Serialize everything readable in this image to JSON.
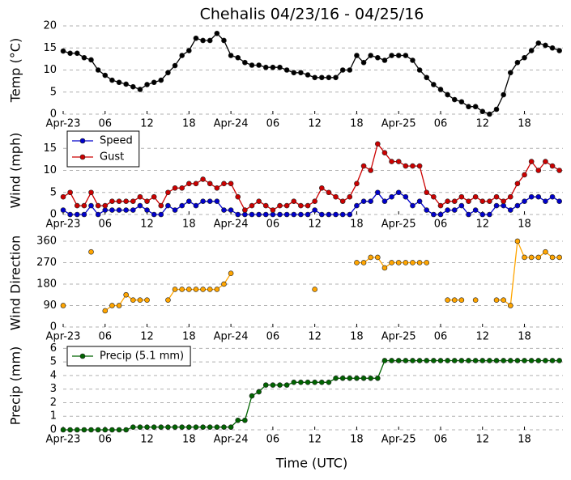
{
  "chart_data": [
    {
      "type": "line",
      "title": "Chehalis 04/23/16 - 04/25/16",
      "y_label": "Temp (°C)",
      "x": [
        0,
        1,
        2,
        3,
        4,
        5,
        6,
        7,
        8,
        9,
        10,
        11,
        12,
        13,
        14,
        15,
        16,
        17,
        18,
        19,
        20,
        21,
        22,
        23,
        24,
        25,
        26,
        27,
        28,
        29,
        30,
        31,
        32,
        33,
        34,
        35,
        36,
        37,
        38,
        39,
        40,
        41,
        42,
        43,
        44,
        45,
        46,
        47,
        48,
        49,
        50,
        51,
        52,
        53,
        54,
        55,
        56,
        57,
        58,
        59,
        60,
        61,
        62,
        63,
        64,
        65,
        66,
        67,
        68,
        69,
        70,
        71
      ],
      "xlim": [
        0,
        71.5
      ],
      "xticks": [
        {
          "value": 0,
          "label": "Apr-23"
        },
        {
          "value": 6,
          "label": "06"
        },
        12,
        18,
        {
          "value": 24,
          "label": "Apr-24"
        },
        {
          "value": 30,
          "label": "06"
        },
        {
          "value": 36,
          "label": "12"
        },
        {
          "value": 42,
          "label": "18"
        },
        {
          "value": 48,
          "label": "Apr-25"
        },
        {
          "value": 54,
          "label": "06"
        },
        {
          "value": 60,
          "label": "12"
        },
        {
          "value": 66,
          "label": "18"
        }
      ],
      "ylim": [
        0,
        20
      ],
      "yticks": [
        0,
        5,
        10,
        15,
        20
      ],
      "grid": true,
      "series": [
        {
          "color": "#000000",
          "values": [
            14.3,
            13.8,
            13.8,
            12.8,
            12.3,
            10,
            8.8,
            7.7,
            7.2,
            6.8,
            6.2,
            5.6,
            6.7,
            7.2,
            7.7,
            9.4,
            11,
            13.3,
            14.4,
            17.2,
            16.7,
            16.7,
            18.3,
            16.7,
            13.3,
            12.8,
            11.7,
            11.1,
            11.1,
            10.6,
            10.6,
            10.6,
            10,
            9.4,
            9.4,
            8.9,
            8.3,
            8.3,
            8.3,
            8.3,
            10,
            10,
            13.3,
            11.7,
            13.3,
            12.8,
            12.2,
            13.3,
            13.3,
            13.3,
            12.2,
            10,
            8.3,
            6.7,
            5.6,
            4.4,
            3.3,
            2.8,
            1.7,
            1.7,
            0.6,
            0,
            1.1,
            4.4,
            9.4,
            11.7,
            12.8,
            14.4,
            16.1,
            15.6,
            15,
            14.4
          ]
        }
      ]
    },
    {
      "type": "line",
      "y_label": "Wind (mph)",
      "x": [
        0,
        1,
        2,
        3,
        4,
        5,
        6,
        7,
        8,
        9,
        10,
        11,
        12,
        13,
        14,
        15,
        16,
        17,
        18,
        19,
        20,
        21,
        22,
        23,
        24,
        25,
        26,
        27,
        28,
        29,
        30,
        31,
        32,
        33,
        34,
        35,
        36,
        37,
        38,
        39,
        40,
        41,
        42,
        43,
        44,
        45,
        46,
        47,
        48,
        49,
        50,
        51,
        52,
        53,
        54,
        55,
        56,
        57,
        58,
        59,
        60,
        61,
        62,
        63,
        64,
        65,
        66,
        67,
        68,
        69,
        70,
        71
      ],
      "xlim": [
        0,
        71.5
      ],
      "xticks": [
        {
          "value": 0,
          "label": "Apr-23"
        },
        {
          "value": 6,
          "label": "06"
        },
        12,
        18,
        {
          "value": 24,
          "label": "Apr-24"
        },
        {
          "value": 30,
          "label": "06"
        },
        {
          "value": 36,
          "label": "12"
        },
        {
          "value": 42,
          "label": "18"
        },
        {
          "value": 48,
          "label": "Apr-25"
        },
        {
          "value": 54,
          "label": "06"
        },
        {
          "value": 60,
          "label": "12"
        },
        {
          "value": 66,
          "label": "18"
        }
      ],
      "ylim": [
        0,
        20
      ],
      "yticks": [
        0,
        5,
        10,
        15
      ],
      "grid": true,
      "legend": "upper left",
      "series": [
        {
          "name": "Speed",
          "color": "#0000cc",
          "values": [
            1,
            0,
            0,
            0,
            2,
            0,
            1,
            1,
            1,
            1,
            1,
            2,
            1,
            0,
            0,
            2,
            1,
            2,
            3,
            2,
            3,
            3,
            3,
            1,
            1,
            0,
            0,
            0,
            0,
            0,
            0,
            0,
            0,
            0,
            0,
            0,
            1,
            0,
            0,
            0,
            0,
            0,
            2,
            3,
            3,
            5,
            3,
            4,
            5,
            4,
            2,
            3,
            1,
            0,
            0,
            1,
            1,
            2,
            0,
            1,
            0,
            0,
            2,
            2,
            1,
            2,
            3,
            4,
            4,
            3,
            4,
            3
          ]
        },
        {
          "name": "Gust",
          "color": "#cc0000",
          "values": [
            4,
            5,
            2,
            2,
            5,
            2,
            2,
            3,
            3,
            3,
            3,
            4,
            3,
            4,
            2,
            5,
            6,
            6,
            7,
            7,
            8,
            7,
            6,
            7,
            7,
            4,
            1,
            2,
            3,
            2,
            1,
            2,
            2,
            3,
            2,
            2,
            3,
            6,
            5,
            4,
            3,
            4,
            7,
            11,
            10,
            16,
            14,
            12,
            12,
            11,
            11,
            11,
            5,
            4,
            2,
            3,
            3,
            4,
            3,
            4,
            3,
            3,
            4,
            3,
            4,
            7,
            9,
            12,
            10,
            12,
            11,
            10
          ]
        }
      ]
    },
    {
      "type": "line",
      "y_label": "Wind Direction",
      "x": [
        0,
        1,
        2,
        3,
        4,
        5,
        6,
        7,
        8,
        9,
        10,
        11,
        12,
        13,
        14,
        15,
        16,
        17,
        18,
        19,
        20,
        21,
        22,
        23,
        24,
        25,
        26,
        27,
        28,
        29,
        30,
        31,
        32,
        33,
        34,
        35,
        36,
        37,
        38,
        39,
        40,
        41,
        42,
        43,
        44,
        45,
        46,
        47,
        48,
        49,
        50,
        51,
        52,
        53,
        54,
        55,
        56,
        57,
        58,
        59,
        60,
        61,
        62,
        63,
        64,
        65,
        66,
        67,
        68,
        69,
        70,
        71
      ],
      "xlim": [
        0,
        71.5
      ],
      "xticks": [
        {
          "value": 0,
          "label": "Apr-23"
        },
        {
          "value": 6,
          "label": "06"
        },
        12,
        18,
        {
          "value": 24,
          "label": "Apr-24"
        },
        {
          "value": 30,
          "label": "06"
        },
        {
          "value": 36,
          "label": "12"
        },
        {
          "value": 42,
          "label": "18"
        },
        {
          "value": 48,
          "label": "Apr-25"
        },
        {
          "value": 54,
          "label": "06"
        },
        {
          "value": 60,
          "label": "12"
        },
        {
          "value": 66,
          "label": "18"
        }
      ],
      "ylim": [
        0,
        370
      ],
      "yticks": [
        0,
        90,
        180,
        270,
        360
      ],
      "grid": true,
      "series": [
        {
          "color": "#ffa500",
          "values": [
            90,
            null,
            null,
            null,
            315,
            null,
            68,
            90,
            90,
            135,
            113,
            113,
            113,
            null,
            null,
            113,
            158,
            158,
            158,
            158,
            158,
            158,
            158,
            180,
            225,
            null,
            null,
            null,
            null,
            null,
            null,
            null,
            null,
            null,
            null,
            null,
            158,
            null,
            null,
            null,
            null,
            null,
            270,
            270,
            292,
            292,
            248,
            270,
            270,
            270,
            270,
            270,
            270,
            null,
            null,
            113,
            113,
            113,
            null,
            113,
            null,
            null,
            113,
            113,
            90,
            360,
            292,
            292,
            292,
            315,
            292,
            292
          ]
        }
      ]
    },
    {
      "type": "line",
      "y_label": "Precip (mm)",
      "x_label": "Time (UTC)",
      "x": [
        0,
        1,
        2,
        3,
        4,
        5,
        6,
        7,
        8,
        9,
        10,
        11,
        12,
        13,
        14,
        15,
        16,
        17,
        18,
        19,
        20,
        21,
        22,
        23,
        24,
        25,
        26,
        27,
        28,
        29,
        30,
        31,
        32,
        33,
        34,
        35,
        36,
        37,
        38,
        39,
        40,
        41,
        42,
        43,
        44,
        45,
        46,
        47,
        48,
        49,
        50,
        51,
        52,
        53,
        54,
        55,
        56,
        57,
        58,
        59,
        60,
        61,
        62,
        63,
        64,
        65,
        66,
        67,
        68,
        69,
        70,
        71
      ],
      "xlim": [
        0,
        71.5
      ],
      "xticks": [
        {
          "value": 0,
          "label": "Apr-23"
        },
        {
          "value": 6,
          "label": "06"
        },
        12,
        18,
        {
          "value": 24,
          "label": "Apr-24"
        },
        {
          "value": 30,
          "label": "06"
        },
        {
          "value": 36,
          "label": "12"
        },
        {
          "value": 42,
          "label": "18"
        },
        {
          "value": 48,
          "label": "Apr-25"
        },
        {
          "value": 54,
          "label": "06"
        },
        {
          "value": 60,
          "label": "12"
        },
        {
          "value": 66,
          "label": "18"
        }
      ],
      "ylim": [
        0,
        6.5
      ],
      "yticks": [
        0,
        1,
        2,
        3,
        4,
        5,
        6
      ],
      "grid": true,
      "legend": "upper left",
      "series": [
        {
          "name": "Precip (5.1 mm)",
          "color": "#006400",
          "values": [
            0,
            0,
            0,
            0,
            0,
            0,
            0,
            0,
            0,
            0,
            0.2,
            0.2,
            0.2,
            0.2,
            0.2,
            0.2,
            0.2,
            0.2,
            0.2,
            0.2,
            0.2,
            0.2,
            0.2,
            0.2,
            0.2,
            0.7,
            0.7,
            2.5,
            2.8,
            3.3,
            3.3,
            3.3,
            3.3,
            3.5,
            3.5,
            3.5,
            3.5,
            3.5,
            3.5,
            3.8,
            3.8,
            3.8,
            3.8,
            3.8,
            3.8,
            3.8,
            5.1,
            5.1,
            5.1,
            5.1,
            5.1,
            5.1,
            5.1,
            5.1,
            5.1,
            5.1,
            5.1,
            5.1,
            5.1,
            5.1,
            5.1,
            5.1,
            5.1,
            5.1,
            5.1,
            5.1,
            5.1,
            5.1,
            5.1,
            5.1,
            5.1,
            5.1
          ]
        }
      ]
    }
  ]
}
